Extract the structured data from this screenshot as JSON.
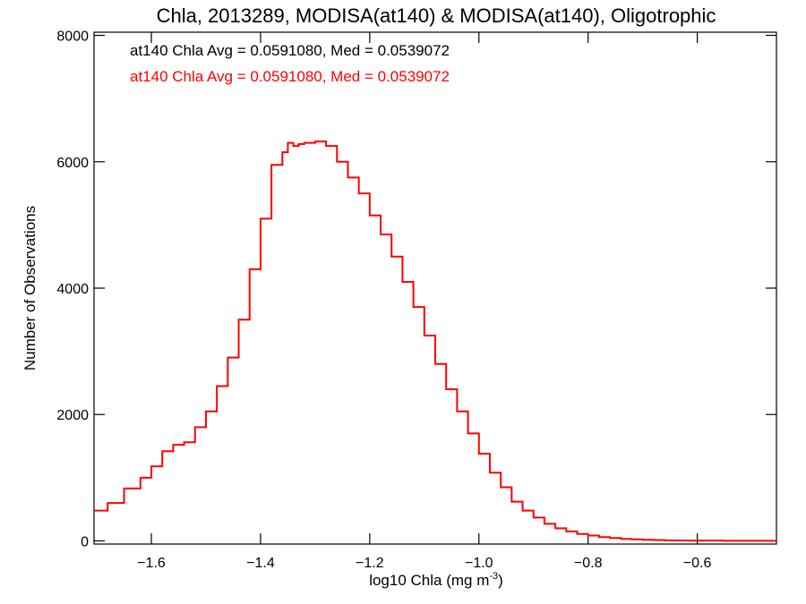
{
  "chart_data": {
    "type": "line",
    "title": "Chla, 2013289, MODISA(at140) & MODISA(at140), Oligotrophic",
    "xlabel": "log10 Chla (mg m",
    "xlabel_sup": "-3",
    "xlabel_suffix": ")",
    "ylabel": "Number of Observations",
    "xlim": [
      -1.705,
      -0.455
    ],
    "ylim": [
      -50,
      8050
    ],
    "x_ticks": [
      -1.6,
      -1.4,
      -1.2,
      -1.0,
      -0.8,
      -0.6
    ],
    "x_tick_labels": [
      "−1.6",
      "−1.4",
      "−1.2",
      "−1.0",
      "−0.8",
      "−0.6"
    ],
    "y_ticks": [
      0,
      2000,
      4000,
      6000,
      8000
    ],
    "y_tick_labels": [
      "0",
      "2000",
      "4000",
      "6000",
      "8000"
    ],
    "annotations": [
      {
        "text": "at140 Chla Avg = 0.0591080, Med = 0.0539072",
        "color": "#000000"
      },
      {
        "text": "at140 Chla Avg = 0.0591080, Med = 0.0539072",
        "color": "#ff0000"
      }
    ],
    "series": [
      {
        "color": "#ff0000",
        "style": "step",
        "x": [
          -1.705,
          -1.68,
          -1.65,
          -1.62,
          -1.6,
          -1.58,
          -1.56,
          -1.54,
          -1.52,
          -1.5,
          -1.48,
          -1.46,
          -1.44,
          -1.42,
          -1.4,
          -1.38,
          -1.36,
          -1.35,
          -1.34,
          -1.33,
          -1.32,
          -1.3,
          -1.28,
          -1.26,
          -1.24,
          -1.22,
          -1.2,
          -1.18,
          -1.16,
          -1.14,
          -1.12,
          -1.1,
          -1.08,
          -1.06,
          -1.04,
          -1.02,
          -1.0,
          -0.98,
          -0.96,
          -0.94,
          -0.92,
          -0.9,
          -0.88,
          -0.86,
          -0.84,
          -0.82,
          -0.8,
          -0.78,
          -0.76,
          -0.74,
          -0.72,
          -0.7,
          -0.68,
          -0.66,
          -0.64,
          -0.62,
          -0.6,
          -0.55,
          -0.5,
          -0.455
        ],
        "y": [
          480,
          600,
          830,
          1000,
          1180,
          1420,
          1520,
          1560,
          1800,
          2050,
          2450,
          2900,
          3500,
          4300,
          5100,
          5950,
          6150,
          6300,
          6250,
          6280,
          6300,
          6320,
          6250,
          6000,
          5750,
          5500,
          5150,
          4850,
          4500,
          4100,
          3700,
          3250,
          2800,
          2400,
          2050,
          1700,
          1380,
          1080,
          850,
          620,
          480,
          370,
          270,
          200,
          150,
          110,
          85,
          60,
          45,
          32,
          25,
          18,
          13,
          9,
          7,
          5,
          4,
          2,
          1,
          0
        ]
      }
    ]
  }
}
